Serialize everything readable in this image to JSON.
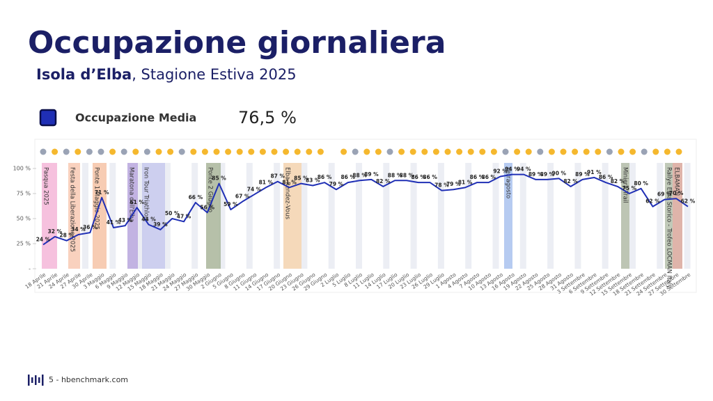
{
  "slide": {
    "title": "Occupazione giornaliera",
    "subtitle_place": "Isola d’Elba",
    "subtitle_rest": ", Stagione Estiva 2025",
    "legend_label": "Occupazione Media",
    "legend_value": "76,5 %",
    "footer": "5 - hbenchmark.com",
    "events": [
      "Pasqua 2025",
      "Festa della Liberazione 2025",
      "Ponte 1 Maggio 2025",
      "Maratona dell'Elba",
      "Iron Tour Triathlon",
      "Ponte 2 Giugno",
      "Elba Rendez-Vous",
      "Ferragosto",
      "Miniera Trail",
      "Rallye Elba Storico - Trofeo LOCMAN Italy",
      "ELBAMAN"
    ]
  },
  "chart_data": {
    "type": "line",
    "categories": [
      "18 Aprile",
      "21 Aprile",
      "24 Aprile",
      "27 Aprile",
      "30 Aprile",
      "3 Maggio",
      "6 Maggio",
      "9 Maggio",
      "12 Maggio",
      "15 Maggio",
      "18 Maggio",
      "21 Maggio",
      "24 Maggio",
      "27 Maggio",
      "30 Maggio",
      "2 Giugno",
      "5 Giugno",
      "8 Giugno",
      "11 Giugno",
      "14 Giugno",
      "17 Giugno",
      "20 Giugno",
      "23 Giugno",
      "26 Giugno",
      "29 Giugno",
      "2 Luglio",
      "5 Luglio",
      "8 Luglio",
      "11 Luglio",
      "14 Luglio",
      "17 Luglio",
      "20 Luglio",
      "23 Luglio",
      "26 Luglio",
      "29 Luglio",
      "1 Agosto",
      "4 Agosto",
      "7 Agosto",
      "10 Agosto",
      "13 Agosto",
      "16 Agosto",
      "19 Agosto",
      "22 Agosto",
      "25 Agosto",
      "28 Agosto",
      "31 Agosto",
      "3 Settembre",
      "6 Settembre",
      "9 Settembre",
      "12 Settembre",
      "15 Settembre",
      "18 Settembre",
      "21 Settembre",
      "24 Settembre",
      "27 Settembre",
      "30 Settembre"
    ],
    "series": [
      {
        "name": "Occupazione",
        "color": "#1f2fb5",
        "values": [
          24,
          32,
          28,
          34,
          36,
          71,
          41,
          43,
          61,
          44,
          39,
          50,
          47,
          66,
          56,
          85,
          59,
          67,
          74,
          81,
          87,
          81,
          85,
          83,
          86,
          79,
          86,
          88,
          89,
          82,
          88,
          88,
          86,
          86,
          78,
          79,
          81,
          86,
          86,
          92,
          94,
          94,
          89,
          89,
          90,
          82,
          89,
          91,
          86,
          82,
          75,
          80,
          62,
          69,
          70,
          62
        ],
        "value_labels": [
          "24 %",
          "32 %",
          "28 %",
          "34 %",
          "36 %",
          "71 %",
          "41 %",
          "43 %",
          "61 %",
          "44 %",
          "39 %",
          "50 %",
          "47 %",
          "66 %",
          "56 %",
          "85 %",
          "59 %",
          "67 %",
          "74 %",
          "81 %",
          "87 %",
          "81 %",
          "85 %",
          "83 %",
          "86 %",
          "79 %",
          "86 %",
          "88 %",
          "89 %",
          "82 %",
          "88 %",
          "88 %",
          "86 %",
          "86 %",
          "78 %",
          "79 %",
          "81 %",
          "86 %",
          "86 %",
          "92 %",
          "94 %",
          "94 %",
          "89 %",
          "89 %",
          "90 %",
          "82 %",
          "89 %",
          "91 %",
          "86 %",
          "82 %",
          "75 %",
          "80 %",
          "62 %",
          "69 %",
          "70 %",
          "62 %"
        ]
      }
    ],
    "ylim": [
      0,
      100
    ],
    "yticks": [
      {
        "value": 0,
        "label": "-"
      },
      {
        "value": 25,
        "label": "25 %"
      },
      {
        "value": 50,
        "label": "50 %"
      },
      {
        "value": 75,
        "label": "75 %"
      },
      {
        "value": 100,
        "label": "100 %"
      }
    ]
  }
}
